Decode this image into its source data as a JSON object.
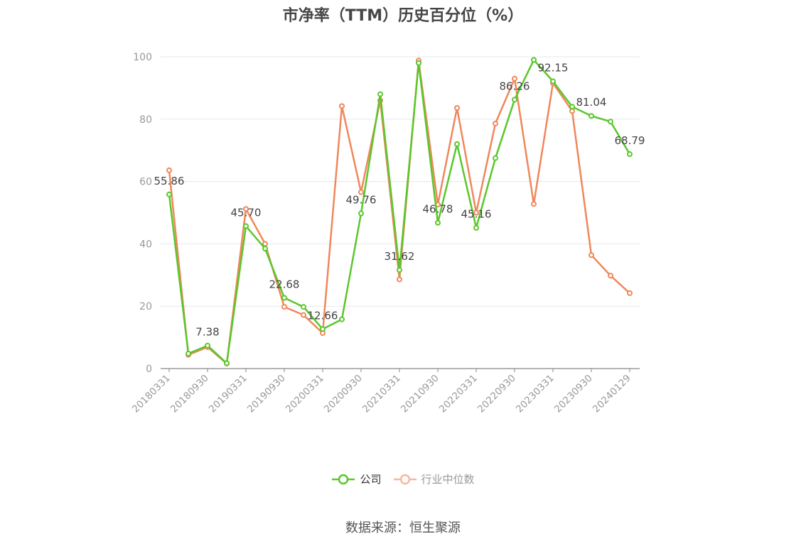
{
  "chart_data": {
    "type": "line",
    "title": "市净率（TTM）历史百分位（%）",
    "xlabel": "",
    "ylabel": "",
    "ylim": [
      0,
      100
    ],
    "yticks": [
      0,
      20,
      40,
      60,
      80,
      100
    ],
    "grid": true,
    "legend_position": "bottom",
    "x_tick_labels": [
      "20180331",
      "20180930",
      "20190331",
      "20190930",
      "20200331",
      "20200930",
      "20210331",
      "20210930",
      "20220331",
      "20220930",
      "20230331",
      "20230930",
      "20240129"
    ],
    "x": [
      "20180331",
      "20180630",
      "20180930",
      "20181231",
      "20190331",
      "20190630",
      "20190930",
      "20191231",
      "20200331",
      "20200630",
      "20200930",
      "20201231",
      "20210331",
      "20210630",
      "20210930",
      "20211231",
      "20220331",
      "20220630",
      "20220930",
      "20221231",
      "20230331",
      "20230630",
      "20230930",
      "20231231",
      "20240129"
    ],
    "series": [
      {
        "name": "公司",
        "color": "#5ac72c",
        "values": [
          55.86,
          4.8,
          7.38,
          1.7,
          45.7,
          38.5,
          22.68,
          19.8,
          12.66,
          15.8,
          49.76,
          88.0,
          31.62,
          98.0,
          46.78,
          72.0,
          45.16,
          67.5,
          86.26,
          99.0,
          92.15,
          84.0,
          81.04,
          79.2,
          68.79
        ],
        "labels": [
          "55.86",
          "",
          "7.38",
          "",
          "45.70",
          "",
          "22.68",
          "",
          "12.66",
          "",
          "49.76",
          "",
          "31.62",
          "",
          "46.78",
          "",
          "45.16",
          "",
          "86.26",
          "",
          "92.15",
          "",
          "81.04",
          "",
          "68.79"
        ]
      },
      {
        "name": "行业中位数",
        "color": "#f0875a",
        "values": [
          63.6,
          4.4,
          6.9,
          1.6,
          51.2,
          40.0,
          19.8,
          17.2,
          11.4,
          84.2,
          56.6,
          86.0,
          28.6,
          98.8,
          52.6,
          83.6,
          50.0,
          78.6,
          93.0,
          52.8,
          91.6,
          82.6,
          36.4,
          29.8,
          24.2
        ]
      }
    ]
  },
  "source_text": "数据来源：恒生聚源"
}
